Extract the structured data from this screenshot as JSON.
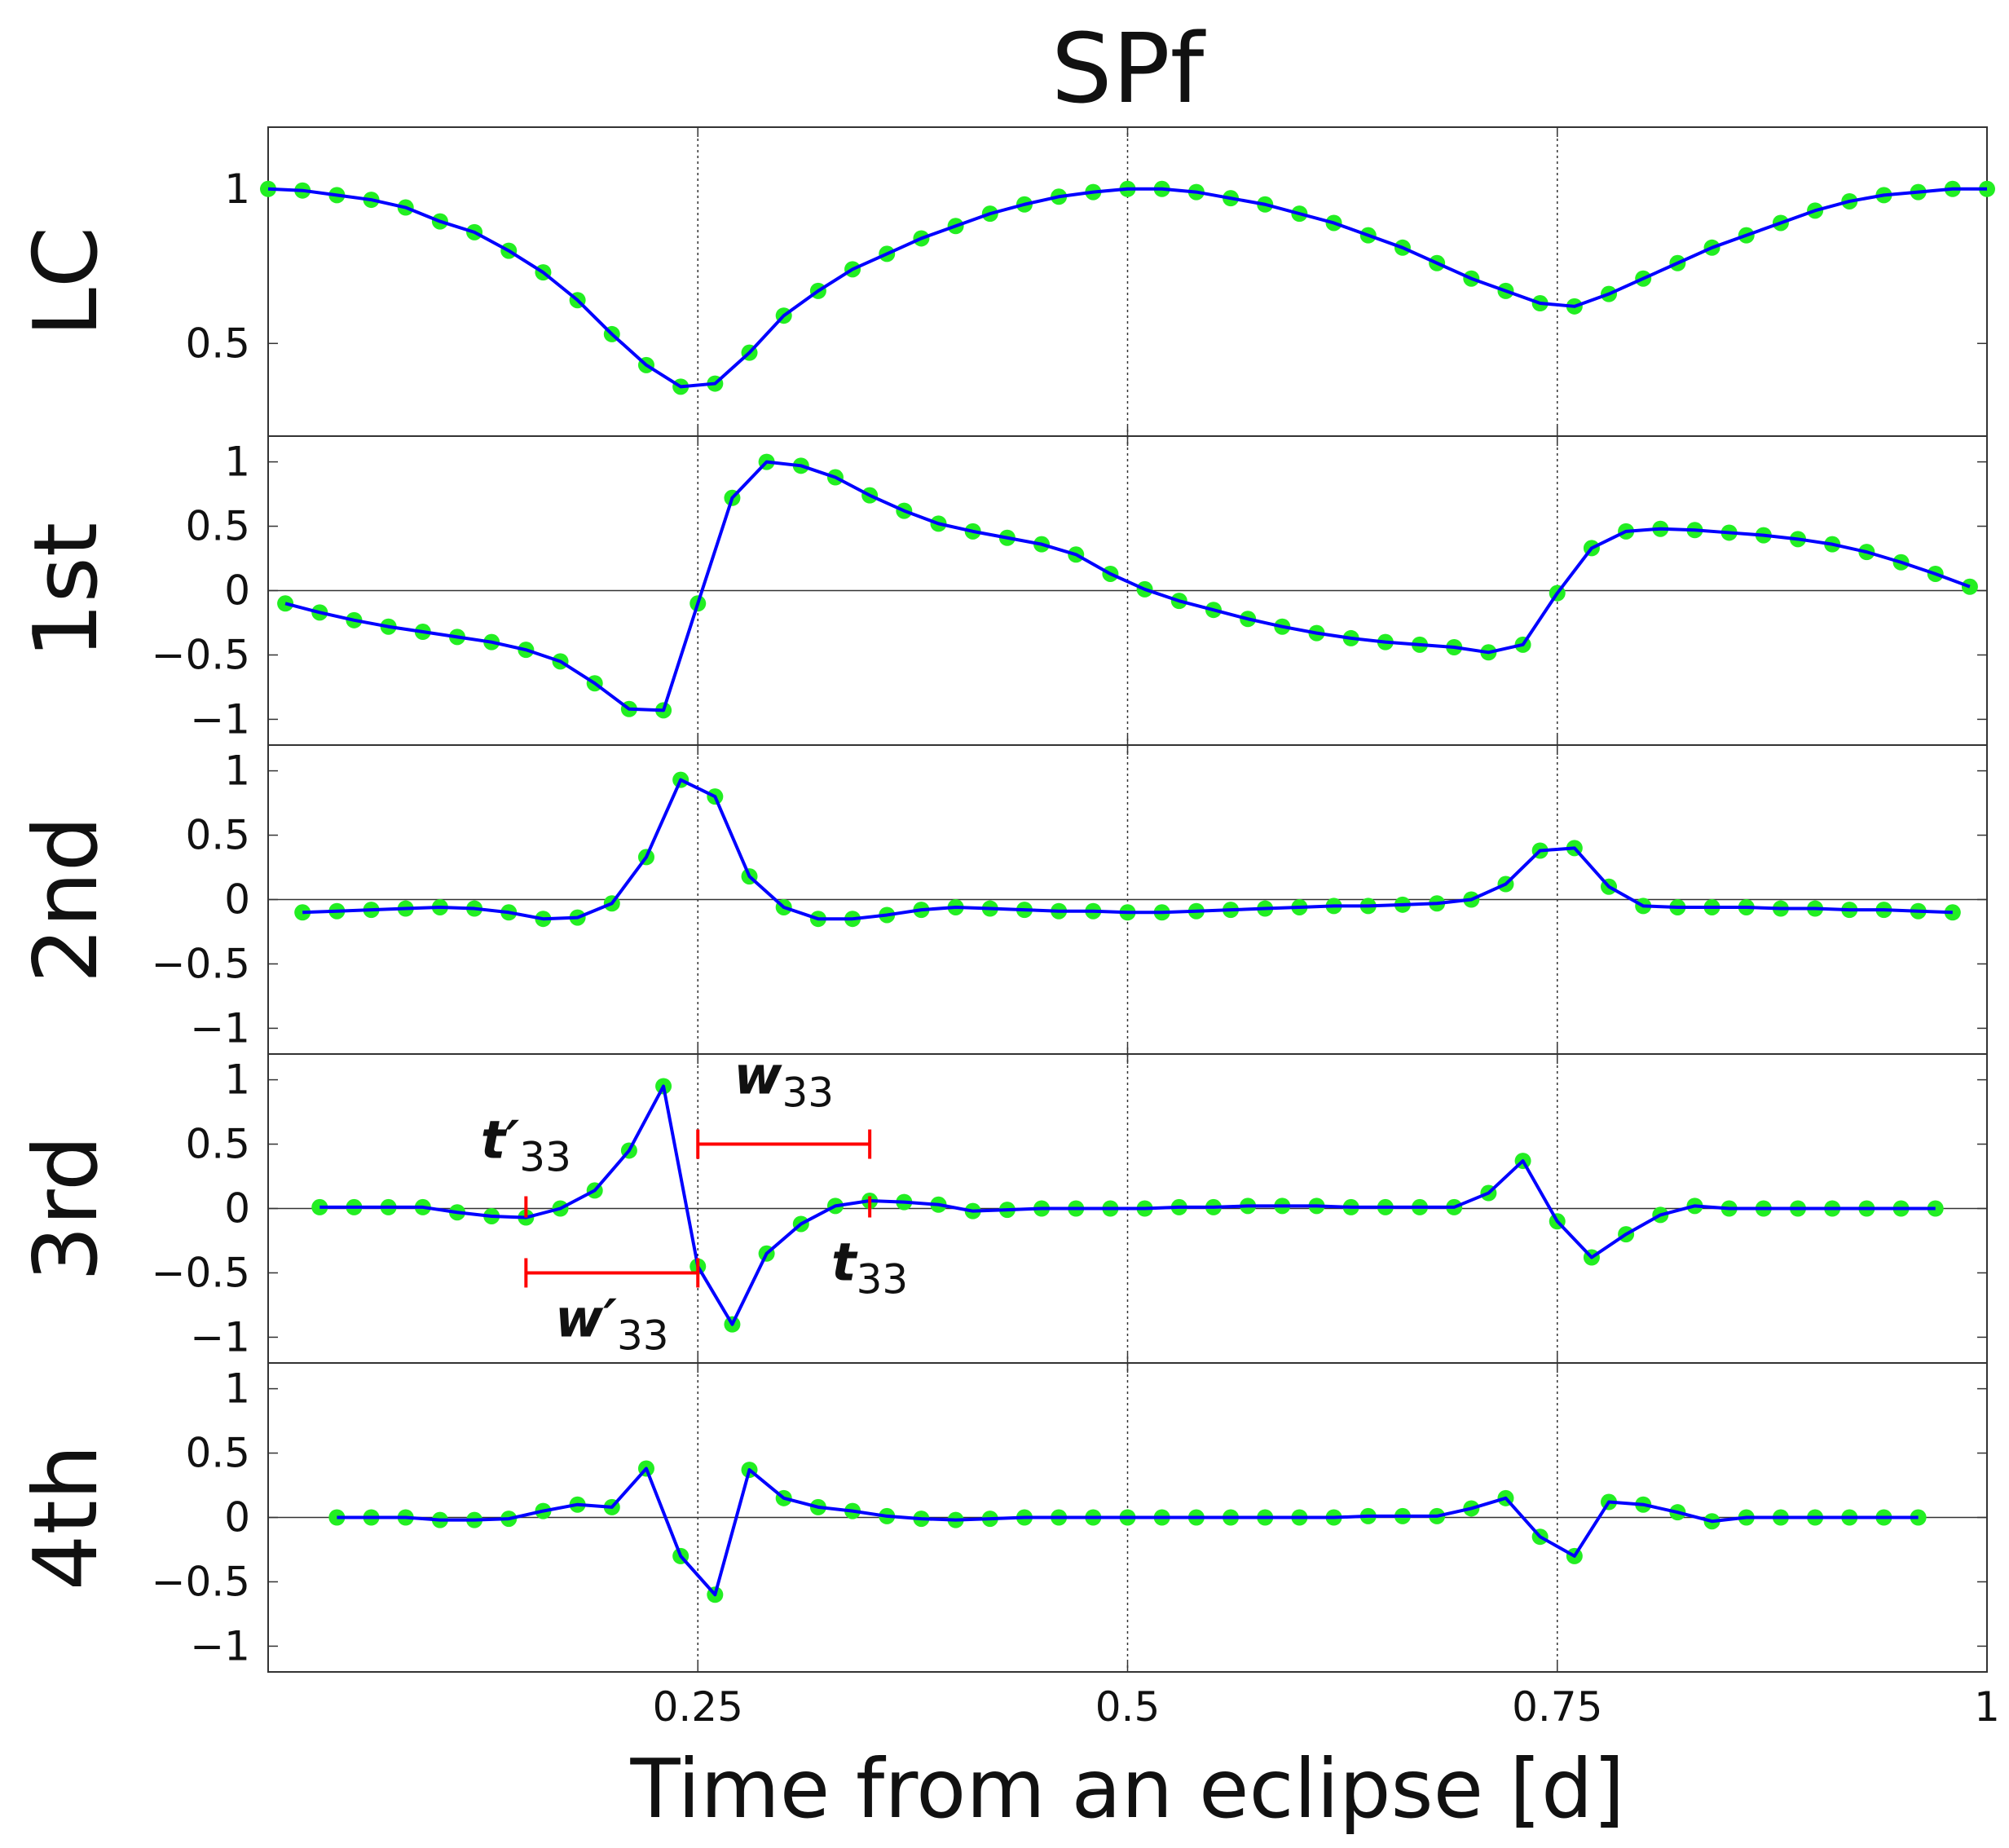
{
  "chart_data": [
    {
      "type": "line",
      "title": "SPf",
      "ylabel": "LC",
      "x": [
        0,
        0.02,
        0.04,
        0.06,
        0.08,
        0.1,
        0.12,
        0.14,
        0.16,
        0.18,
        0.2,
        0.22,
        0.24,
        0.26,
        0.28,
        0.3,
        0.32,
        0.34,
        0.36,
        0.38,
        0.4,
        0.42,
        0.44,
        0.46,
        0.48,
        0.5,
        0.52,
        0.54,
        0.56,
        0.58,
        0.6,
        0.62,
        0.64,
        0.66,
        0.68,
        0.7,
        0.72,
        0.74,
        0.76,
        0.78,
        0.8,
        0.82,
        0.84,
        0.86,
        0.88,
        0.9,
        0.92,
        0.94,
        0.96,
        0.98,
        1
      ],
      "series": [
        {
          "color": "#0000ff",
          "marker_color": "#22ee22",
          "values": [
            1.0,
            0.995,
            0.98,
            0.965,
            0.94,
            0.895,
            0.86,
            0.8,
            0.73,
            0.64,
            0.53,
            0.43,
            0.36,
            0.37,
            0.47,
            0.59,
            0.67,
            0.74,
            0.79,
            0.84,
            0.88,
            0.92,
            0.95,
            0.975,
            0.99,
            1.0,
            1.0,
            0.99,
            0.97,
            0.95,
            0.92,
            0.89,
            0.85,
            0.81,
            0.76,
            0.71,
            0.67,
            0.63,
            0.62,
            0.66,
            0.71,
            0.76,
            0.81,
            0.85,
            0.89,
            0.93,
            0.96,
            0.98,
            0.99,
            1.0,
            1.0
          ]
        }
      ],
      "xlim": [
        0,
        1
      ],
      "xticks": [
        0.25,
        0.5,
        0.75,
        1
      ],
      "ylim": [
        0.2,
        1.2
      ],
      "yticks": [
        0.5,
        1
      ],
      "zero_line": false,
      "grid_x": true
    },
    {
      "type": "line",
      "ylabel": "1st",
      "x": [
        0.01,
        0.03,
        0.05,
        0.07,
        0.09,
        0.11,
        0.13,
        0.15,
        0.17,
        0.19,
        0.21,
        0.23,
        0.25,
        0.27,
        0.29,
        0.31,
        0.33,
        0.35,
        0.37,
        0.39,
        0.41,
        0.43,
        0.45,
        0.47,
        0.49,
        0.51,
        0.53,
        0.55,
        0.57,
        0.59,
        0.61,
        0.63,
        0.65,
        0.67,
        0.69,
        0.71,
        0.73,
        0.75,
        0.77,
        0.79,
        0.81,
        0.83,
        0.85,
        0.87,
        0.89,
        0.91,
        0.93,
        0.95,
        0.97,
        0.99
      ],
      "series": [
        {
          "color": "#0000ff",
          "marker_color": "#22ee22",
          "values": [
            -0.1,
            -0.17,
            -0.23,
            -0.28,
            -0.32,
            -0.36,
            -0.4,
            -0.46,
            -0.55,
            -0.72,
            -0.92,
            -0.93,
            -0.1,
            0.72,
            1.0,
            0.97,
            0.88,
            0.74,
            0.62,
            0.52,
            0.46,
            0.41,
            0.36,
            0.28,
            0.13,
            0.01,
            -0.08,
            -0.15,
            -0.22,
            -0.28,
            -0.33,
            -0.37,
            -0.4,
            -0.42,
            -0.44,
            -0.48,
            -0.42,
            -0.02,
            0.33,
            0.46,
            0.48,
            0.47,
            0.45,
            0.43,
            0.4,
            0.36,
            0.3,
            0.22,
            0.13,
            0.03
          ]
        }
      ],
      "xlim": [
        0,
        1
      ],
      "xticks": [
        0.25,
        0.5,
        0.75,
        1
      ],
      "ylim": [
        -1.2,
        1.2
      ],
      "yticks": [
        {
          "value": -1,
          "label": "−1"
        },
        {
          "value": -0.5,
          "label": "−0.5"
        },
        0,
        0.5,
        1
      ],
      "zero_line": true,
      "grid_x": true
    },
    {
      "type": "line",
      "ylabel": "2nd",
      "x": [
        0.02,
        0.04,
        0.06,
        0.08,
        0.1,
        0.12,
        0.14,
        0.16,
        0.18,
        0.2,
        0.22,
        0.24,
        0.26,
        0.28,
        0.3,
        0.32,
        0.34,
        0.36,
        0.38,
        0.4,
        0.42,
        0.44,
        0.46,
        0.48,
        0.5,
        0.52,
        0.54,
        0.56,
        0.58,
        0.6,
        0.62,
        0.64,
        0.66,
        0.68,
        0.7,
        0.72,
        0.74,
        0.76,
        0.78,
        0.8,
        0.82,
        0.84,
        0.86,
        0.88,
        0.9,
        0.92,
        0.94,
        0.96,
        0.98
      ],
      "series": [
        {
          "color": "#0000ff",
          "marker_color": "#22ee22",
          "values": [
            -0.1,
            -0.09,
            -0.08,
            -0.07,
            -0.06,
            -0.07,
            -0.1,
            -0.15,
            -0.14,
            -0.03,
            0.33,
            0.93,
            0.8,
            0.18,
            -0.06,
            -0.15,
            -0.15,
            -0.12,
            -0.08,
            -0.06,
            -0.07,
            -0.08,
            -0.09,
            -0.09,
            -0.1,
            -0.1,
            -0.09,
            -0.08,
            -0.07,
            -0.06,
            -0.05,
            -0.05,
            -0.04,
            -0.03,
            0.0,
            0.12,
            0.38,
            0.4,
            0.1,
            -0.05,
            -0.06,
            -0.06,
            -0.06,
            -0.07,
            -0.07,
            -0.08,
            -0.08,
            -0.09,
            -0.1
          ]
        }
      ],
      "xlim": [
        0,
        1
      ],
      "xticks": [
        0.25,
        0.5,
        0.75,
        1
      ],
      "ylim": [
        -1.2,
        1.2
      ],
      "yticks": [
        {
          "value": -1,
          "label": "−1"
        },
        {
          "value": -0.5,
          "label": "−0.5"
        },
        0,
        0.5,
        1
      ],
      "zero_line": true,
      "grid_x": true
    },
    {
      "type": "line",
      "ylabel": "3rd",
      "x": [
        0.03,
        0.05,
        0.07,
        0.09,
        0.11,
        0.13,
        0.15,
        0.17,
        0.19,
        0.21,
        0.23,
        0.25,
        0.27,
        0.29,
        0.31,
        0.33,
        0.35,
        0.37,
        0.39,
        0.41,
        0.43,
        0.45,
        0.47,
        0.49,
        0.51,
        0.53,
        0.55,
        0.57,
        0.59,
        0.61,
        0.63,
        0.65,
        0.67,
        0.69,
        0.71,
        0.73,
        0.75,
        0.77,
        0.79,
        0.81,
        0.83,
        0.85,
        0.87,
        0.89,
        0.91,
        0.93,
        0.95,
        0.97
      ],
      "series": [
        {
          "color": "#0000ff",
          "marker_color": "#22ee22",
          "values": [
            0.01,
            0.01,
            0.01,
            0.01,
            -0.03,
            -0.06,
            -0.07,
            0.0,
            0.14,
            0.45,
            0.95,
            -0.45,
            -0.9,
            -0.35,
            -0.12,
            0.02,
            0.06,
            0.05,
            0.03,
            -0.02,
            -0.01,
            0.0,
            0.0,
            0.0,
            0.0,
            0.01,
            0.01,
            0.02,
            0.02,
            0.02,
            0.01,
            0.01,
            0.01,
            0.01,
            0.12,
            0.37,
            -0.1,
            -0.38,
            -0.2,
            -0.05,
            0.02,
            0.0,
            0.0,
            0.0,
            0.0,
            0.0,
            0.0,
            0.0
          ]
        }
      ],
      "xlim": [
        0,
        1
      ],
      "xticks": [
        0.25,
        0.5,
        0.75,
        1
      ],
      "ylim": [
        -1.2,
        1.2
      ],
      "yticks": [
        {
          "value": -1,
          "label": "−1"
        },
        {
          "value": -0.5,
          "label": "−0.5"
        },
        0,
        0.5,
        1
      ],
      "zero_line": true,
      "grid_x": true,
      "annotations": [
        {
          "symbol": "t′",
          "subscript": "33",
          "x": 0.15,
          "y": 0,
          "color": "#ff0000"
        },
        {
          "symbol": "w′",
          "subscript": "33",
          "x": [
            0.15,
            0.25
          ],
          "y": -0.5,
          "color": "#ff0000"
        },
        {
          "symbol": "w",
          "subscript": "33",
          "x": [
            0.25,
            0.35
          ],
          "y": 0.5,
          "color": "#ff0000"
        },
        {
          "symbol": "t",
          "subscript": "33",
          "x": 0.35,
          "y": 0,
          "color": "#ff0000"
        }
      ]
    },
    {
      "type": "line",
      "ylabel": "4th",
      "xlabel": "Time from an eclipse [d]",
      "x": [
        0.04,
        0.06,
        0.08,
        0.1,
        0.12,
        0.14,
        0.16,
        0.18,
        0.2,
        0.22,
        0.24,
        0.26,
        0.28,
        0.3,
        0.32,
        0.34,
        0.36,
        0.38,
        0.4,
        0.42,
        0.44,
        0.46,
        0.48,
        0.5,
        0.52,
        0.54,
        0.56,
        0.58,
        0.6,
        0.62,
        0.64,
        0.66,
        0.68,
        0.7,
        0.72,
        0.74,
        0.76,
        0.78,
        0.8,
        0.82,
        0.84,
        0.86,
        0.88,
        0.9,
        0.92,
        0.94,
        0.96
      ],
      "series": [
        {
          "color": "#0000ff",
          "marker_color": "#22ee22",
          "values": [
            0.0,
            0.0,
            0.0,
            -0.02,
            -0.02,
            -0.01,
            0.05,
            0.1,
            0.08,
            0.38,
            -0.3,
            -0.6,
            0.37,
            0.15,
            0.08,
            0.05,
            0.01,
            -0.01,
            -0.02,
            -0.01,
            0.0,
            0.0,
            0.0,
            0.0,
            0.0,
            0.0,
            0.0,
            0.0,
            0.0,
            0.0,
            0.01,
            0.01,
            0.01,
            0.07,
            0.15,
            -0.15,
            -0.3,
            0.12,
            0.1,
            0.04,
            -0.03,
            0.0,
            0.0,
            0.0,
            0.0,
            0.0,
            0.0
          ]
        }
      ],
      "xlim": [
        0,
        1
      ],
      "xticks": [
        0.25,
        0.5,
        0.75,
        1
      ],
      "ylim": [
        -1.2,
        1.2
      ],
      "yticks": [
        {
          "value": -1,
          "label": "−1"
        },
        {
          "value": -0.5,
          "label": "−0.5"
        },
        0,
        0.5,
        1
      ],
      "zero_line": true,
      "grid_x": true
    }
  ]
}
